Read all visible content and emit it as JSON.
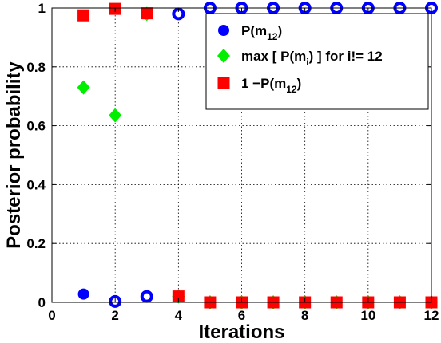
{
  "chart_data": {
    "type": "scatter",
    "xlabel": "Iterations",
    "ylabel": "Posterior probability",
    "xlim": [
      0,
      12
    ],
    "ylim": [
      0,
      1
    ],
    "xticks": [
      0,
      2,
      4,
      6,
      8,
      10,
      12
    ],
    "yticks": [
      0,
      0.2,
      0.4,
      0.6,
      0.8,
      1
    ],
    "ytick_labels": [
      "0",
      "0.2",
      "0.4",
      "0.6",
      "0.8",
      "1"
    ],
    "grid": true,
    "legend_position": "top-right",
    "series": [
      {
        "legend": {
          "main": "P(m",
          "sub": "12",
          "tail": ")"
        },
        "marker": "circle",
        "color": "#0000ff",
        "points": [
          {
            "x": 1,
            "y": 0.028,
            "filled": true
          },
          {
            "x": 2,
            "y": 0.003,
            "filled": false
          },
          {
            "x": 3,
            "y": 0.02,
            "filled": false
          },
          {
            "x": 4,
            "y": 0.98,
            "filled": false
          },
          {
            "x": 5,
            "y": 1.0,
            "filled": false
          },
          {
            "x": 6,
            "y": 1.0,
            "filled": false
          },
          {
            "x": 7,
            "y": 1.0,
            "filled": false
          },
          {
            "x": 8,
            "y": 1.0,
            "filled": false
          },
          {
            "x": 9,
            "y": 1.0,
            "filled": false
          },
          {
            "x": 10,
            "y": 1.0,
            "filled": false
          },
          {
            "x": 11,
            "y": 1.0,
            "filled": false
          },
          {
            "x": 12,
            "y": 1.0,
            "filled": false
          }
        ]
      },
      {
        "legend": {
          "main": "max [ P(m",
          "sub": "i",
          "tail": ") ] for i!= 12"
        },
        "marker": "diamond",
        "color": "#00ee00",
        "points": [
          {
            "x": 1,
            "y": 0.73
          },
          {
            "x": 2,
            "y": 0.635
          },
          {
            "x": 3,
            "y": 0.98
          },
          {
            "x": 4,
            "y": 0.02
          },
          {
            "x": 5,
            "y": 0.0
          },
          {
            "x": 6,
            "y": 0.0
          },
          {
            "x": 7,
            "y": 0.0
          },
          {
            "x": 8,
            "y": 0.0
          },
          {
            "x": 9,
            "y": 0.0
          },
          {
            "x": 10,
            "y": 0.0
          },
          {
            "x": 11,
            "y": 0.0
          },
          {
            "x": 12,
            "y": 0.0
          }
        ]
      },
      {
        "legend": {
          "main": "1 −P(m",
          "sub": "12",
          "tail": ")"
        },
        "marker": "square",
        "color": "#ff0000",
        "points": [
          {
            "x": 1,
            "y": 0.975
          },
          {
            "x": 2,
            "y": 0.997
          },
          {
            "x": 3,
            "y": 0.982
          },
          {
            "x": 4,
            "y": 0.02
          },
          {
            "x": 5,
            "y": 0.0
          },
          {
            "x": 6,
            "y": 0.0
          },
          {
            "x": 7,
            "y": 0.0
          },
          {
            "x": 8,
            "y": 0.0
          },
          {
            "x": 9,
            "y": 0.0
          },
          {
            "x": 10,
            "y": 0.0
          },
          {
            "x": 11,
            "y": 0.0
          },
          {
            "x": 12,
            "y": 0.0
          }
        ]
      }
    ]
  }
}
